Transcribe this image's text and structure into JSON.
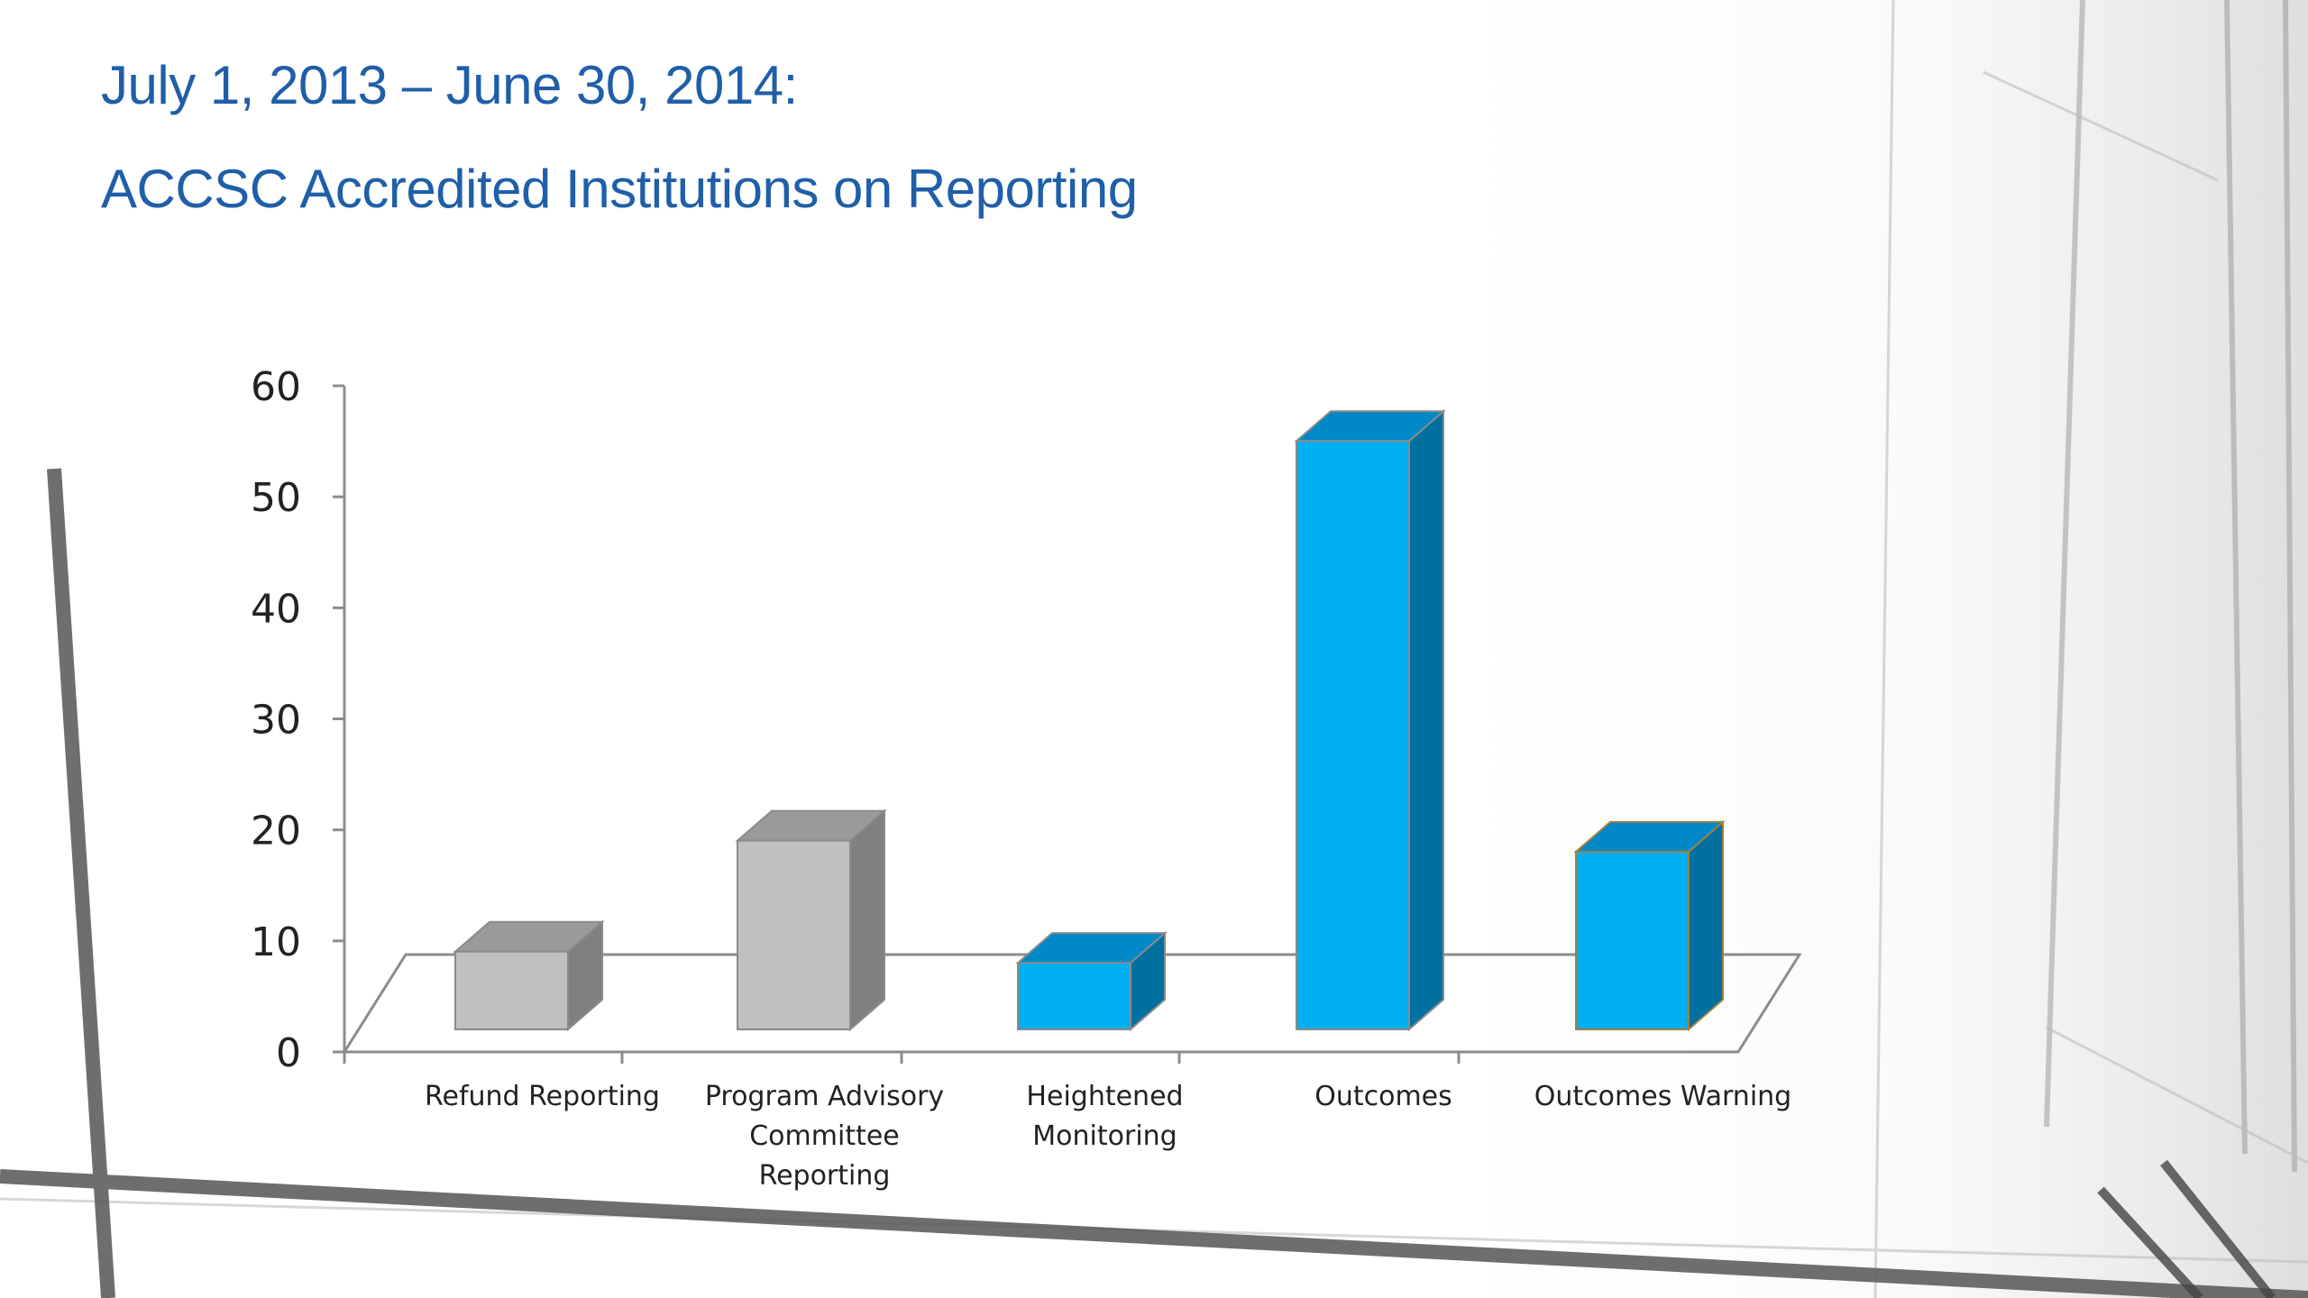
{
  "slide": {
    "title_line_1": "July 1, 2013 – June 30, 2014:",
    "title_line_2": "ACCSC Accredited Institutions on Reporting"
  },
  "colors": {
    "title": "#1f5fa8",
    "gray_front": "#c0c0c0",
    "gray_side": "#808080",
    "gray_top": "#9a9a9a",
    "blue_front": "#00b0f0",
    "blue_side": "#0070a0",
    "blue_top": "#0088c8",
    "outline_gray": "#8a8a8a",
    "outline_gold": "#a08040"
  },
  "chart_data": {
    "type": "bar",
    "title": "",
    "xlabel": "",
    "ylabel": "",
    "ylim": [
      0,
      60
    ],
    "yticks": [
      "0",
      "10",
      "20",
      "30",
      "40",
      "50",
      "60"
    ],
    "legend": "none",
    "categories": [
      [
        "Refund Reporting"
      ],
      [
        "Program Advisory",
        "Committee",
        "Reporting"
      ],
      [
        "Heightened",
        "Monitoring"
      ],
      [
        "Outcomes"
      ],
      [
        "Outcomes Warning"
      ]
    ],
    "values": [
      7,
      17,
      6,
      53,
      16
    ],
    "bar_color_groups": [
      "gray",
      "gray",
      "blue",
      "blue",
      "blue"
    ]
  }
}
